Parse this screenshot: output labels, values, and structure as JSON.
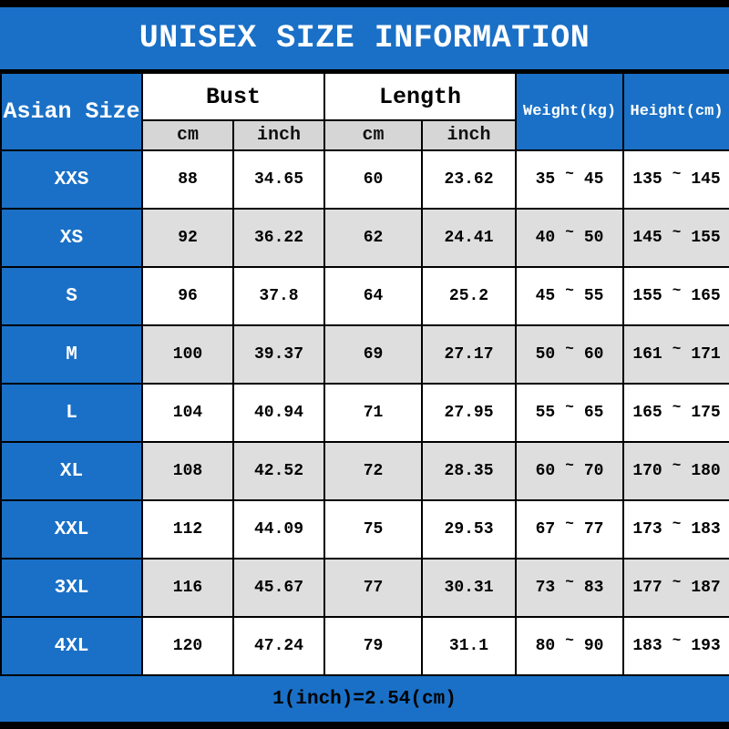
{
  "title": "UNISEX SIZE INFORMATION",
  "footer_note": "1(inch)=2.54(cm)",
  "colors": {
    "blue": "#1a70c6",
    "row_alt": "#dedede",
    "unit_header_bg": "#d6d6d6",
    "grid": "#000000",
    "header_text": "#ffffff"
  },
  "chart_data": {
    "type": "table",
    "title": "UNISEX SIZE INFORMATION",
    "tilde": "~",
    "header": {
      "size": "Asian Size",
      "bust": "Bust",
      "length": "Length",
      "weight": "Weight(kg)",
      "height": "Height(cm)",
      "unit_cm": "cm",
      "unit_inch": "inch"
    },
    "columns": [
      "Asian Size",
      "Bust cm",
      "Bust inch",
      "Length cm",
      "Length inch",
      "Weight(kg)",
      "Height(cm)"
    ],
    "rows": [
      {
        "size": "XXS",
        "bust_cm": "88",
        "bust_inch": "34.65",
        "length_cm": "60",
        "length_inch": "23.62",
        "weight": [
          "35",
          "45"
        ],
        "height": [
          "135",
          "145"
        ]
      },
      {
        "size": "XS",
        "bust_cm": "92",
        "bust_inch": "36.22",
        "length_cm": "62",
        "length_inch": "24.41",
        "weight": [
          "40",
          "50"
        ],
        "height": [
          "145",
          "155"
        ]
      },
      {
        "size": "S",
        "bust_cm": "96",
        "bust_inch": "37.8",
        "length_cm": "64",
        "length_inch": "25.2",
        "weight": [
          "45",
          "55"
        ],
        "height": [
          "155",
          "165"
        ]
      },
      {
        "size": "M",
        "bust_cm": "100",
        "bust_inch": "39.37",
        "length_cm": "69",
        "length_inch": "27.17",
        "weight": [
          "50",
          "60"
        ],
        "height": [
          "161",
          "171"
        ]
      },
      {
        "size": "L",
        "bust_cm": "104",
        "bust_inch": "40.94",
        "length_cm": "71",
        "length_inch": "27.95",
        "weight": [
          "55",
          "65"
        ],
        "height": [
          "165",
          "175"
        ]
      },
      {
        "size": "XL",
        "bust_cm": "108",
        "bust_inch": "42.52",
        "length_cm": "72",
        "length_inch": "28.35",
        "weight": [
          "60",
          "70"
        ],
        "height": [
          "170",
          "180"
        ]
      },
      {
        "size": "XXL",
        "bust_cm": "112",
        "bust_inch": "44.09",
        "length_cm": "75",
        "length_inch": "29.53",
        "weight": [
          "67",
          "77"
        ],
        "height": [
          "173",
          "183"
        ]
      },
      {
        "size": "3XL",
        "bust_cm": "116",
        "bust_inch": "45.67",
        "length_cm": "77",
        "length_inch": "30.31",
        "weight": [
          "73",
          "83"
        ],
        "height": [
          "177",
          "187"
        ]
      },
      {
        "size": "4XL",
        "bust_cm": "120",
        "bust_inch": "47.24",
        "length_cm": "79",
        "length_inch": "31.1",
        "weight": [
          "80",
          "90"
        ],
        "height": [
          "183",
          "193"
        ]
      }
    ],
    "conversion_note": "1(inch)=2.54(cm)"
  }
}
